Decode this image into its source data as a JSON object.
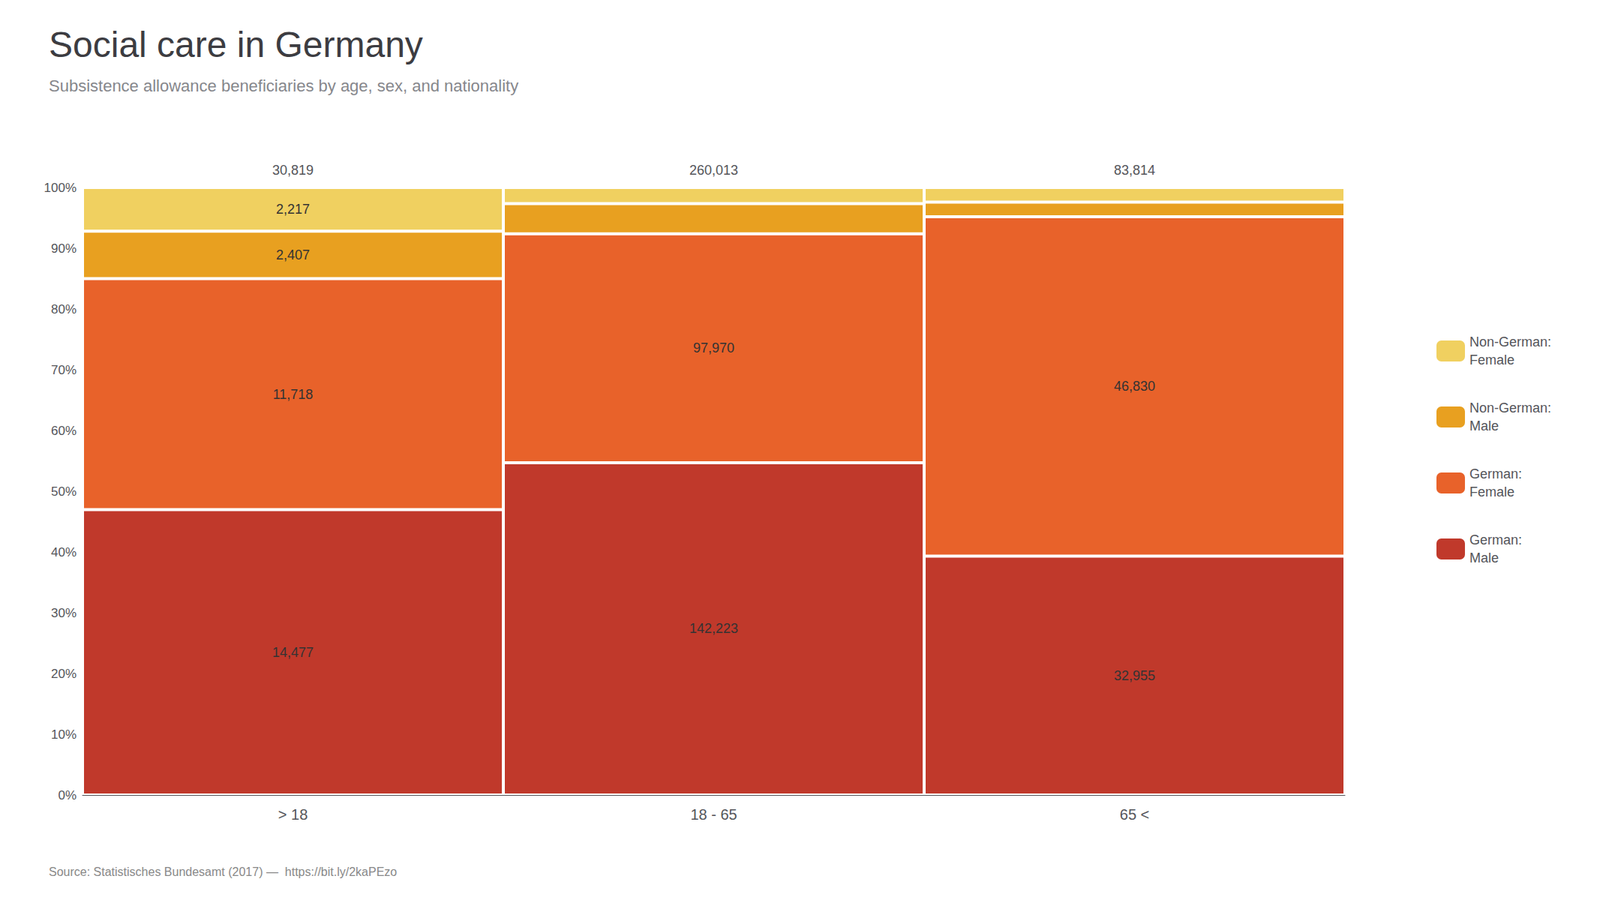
{
  "chart_data": {
    "type": "bar",
    "title": "Social care in Germany",
    "subtitle": "Subsistence allowance beneficiaries by age, sex, and nationality",
    "source": "Source: Statistisches Bundesamt (2017) —  https://bit.ly/2kaPEzo",
    "categories": [
      "> 18",
      "18 - 65",
      "65 <"
    ],
    "series": [
      {
        "name": "German:\nMale",
        "color": "#C0392B",
        "values": [
          46.9743,
          54.6984,
          39.3192
        ],
        "segment_labels": [
          "14,477",
          "142,223",
          "32,955"
        ]
      },
      {
        "name": "German:\nFemale",
        "color": "#E8622A",
        "values": [
          38.022,
          37.6789,
          55.8737
        ],
        "segment_labels": [
          "11,718",
          "97,970",
          "46,830"
        ]
      },
      {
        "name": "Non-German:\nMale",
        "color": "#E8A020",
        "values": [
          7.8101,
          4.9836,
          2.3934
        ],
        "segment_labels": [
          "2,407",
          null,
          null
        ]
      },
      {
        "name": "Non-German:\nFemale",
        "color": "#F0D060",
        "values": [
          7.1936,
          2.6391,
          2.4137
        ],
        "segment_labels": [
          "2,217",
          null,
          null
        ]
      }
    ],
    "total_labels": [
      "30,819",
      "260,013",
      "83,814"
    ],
    "ylim": [
      0,
      100
    ],
    "yticks": [
      {
        "value": 0,
        "label": "0%"
      },
      {
        "value": 10,
        "label": "10%"
      },
      {
        "value": 20,
        "label": "20%"
      },
      {
        "value": 30,
        "label": "30%"
      },
      {
        "value": 40,
        "label": "40%"
      },
      {
        "value": 50,
        "label": "50%"
      },
      {
        "value": 60,
        "label": "60%"
      },
      {
        "value": 70,
        "label": "70%"
      },
      {
        "value": 80,
        "label": "80%"
      },
      {
        "value": 90,
        "label": "90%"
      },
      {
        "value": 100,
        "label": "100%"
      }
    ],
    "stacked": true,
    "grid": true,
    "legend": "right"
  }
}
